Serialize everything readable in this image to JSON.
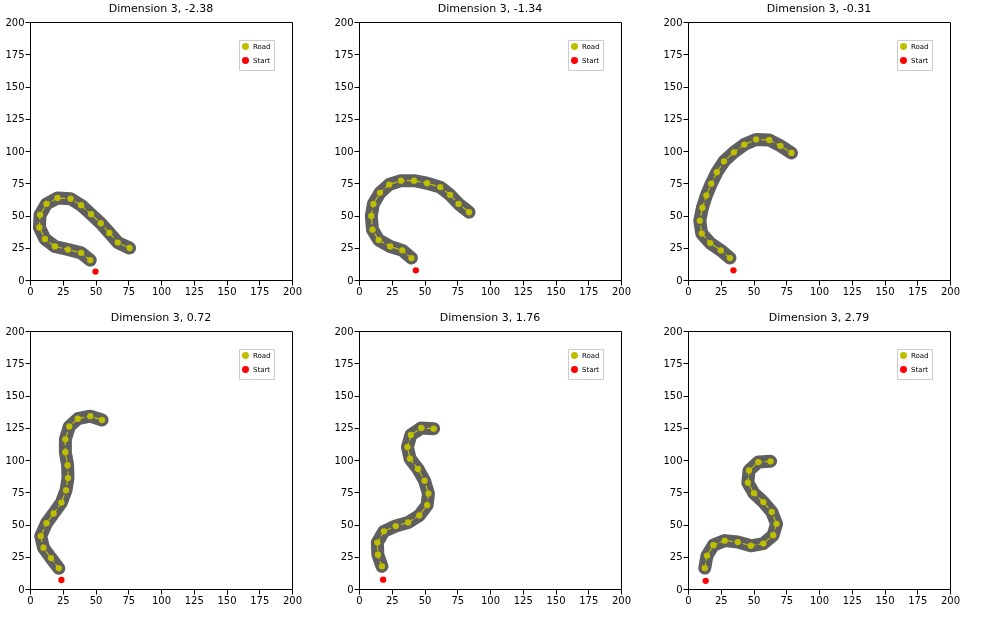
{
  "chart_data": [
    {
      "type": "line",
      "title": "Dimension 3, -2.38",
      "xlim": [
        0,
        200
      ],
      "ylim": [
        0,
        200
      ],
      "xticks": [
        0,
        25,
        50,
        75,
        100,
        125,
        150,
        175,
        200
      ],
      "yticks": [
        0,
        25,
        50,
        75,
        100,
        125,
        150,
        175,
        200
      ],
      "grid": false,
      "legend": "top right",
      "series": [
        {
          "name": "Road",
          "color": "#bfbf00",
          "marker": "circle",
          "line_style": "dashed",
          "x": [
            46,
            39,
            29,
            19,
            11.4,
            7.2,
            7.7,
            12.6,
            21,
            31,
            39,
            46.6,
            54,
            60.6,
            67,
            76
          ],
          "values": [
            15.4,
            21,
            23.6,
            26,
            31.8,
            40.7,
            50.5,
            59,
            63.6,
            63,
            58,
            51,
            44,
            36.5,
            29,
            24.8
          ]
        },
        {
          "name": "Start",
          "type": "scatter",
          "color": "#ff0000",
          "marker": "circle",
          "x": [
            50
          ],
          "values": [
            6.5
          ]
        },
        {
          "color": "#5f5f5f",
          "marker": "none",
          "line_style": "solid",
          "x": [
            46,
            39,
            29,
            19,
            11.4,
            7.2,
            7.7,
            12.6,
            21,
            31,
            39,
            46.6,
            54,
            60.6,
            67,
            76
          ],
          "values": [
            15.4,
            21,
            23.6,
            26,
            31.8,
            40.7,
            50.5,
            59,
            63.6,
            63,
            58,
            51,
            44,
            36.5,
            29,
            24.8
          ]
        }
      ]
    },
    {
      "type": "line",
      "title": "Dimension 3, -1.34",
      "xlim": [
        0,
        200
      ],
      "ylim": [
        0,
        200
      ],
      "xticks": [
        0,
        25,
        50,
        75,
        100,
        125,
        150,
        175,
        200
      ],
      "yticks": [
        0,
        25,
        50,
        75,
        100,
        125,
        150,
        175,
        200
      ],
      "grid": false,
      "legend": "top right",
      "series": [
        {
          "name": "Road",
          "color": "#bfbf00",
          "marker": "circle",
          "line_style": "dashed",
          "x": [
            40,
            33,
            23.8,
            15,
            10.3,
            9.4,
            11,
            16,
            23,
            32,
            42,
            52,
            62,
            69.5,
            76,
            84
          ],
          "values": [
            17,
            23,
            26,
            31,
            39,
            49.6,
            59,
            67.6,
            74,
            77,
            77,
            75,
            72,
            66,
            59,
            52.6
          ]
        },
        {
          "name": "Start",
          "type": "scatter",
          "color": "#ff0000",
          "marker": "circle",
          "x": [
            43.4
          ],
          "values": [
            7.5
          ]
        },
        {
          "color": "#5f5f5f",
          "marker": "none",
          "line_style": "solid",
          "x": [
            40,
            33,
            23.8,
            15,
            10.3,
            9.4,
            11,
            16,
            23,
            32,
            42,
            52,
            62,
            69.5,
            76,
            84
          ],
          "values": [
            17,
            23,
            26,
            31,
            39,
            49.6,
            59,
            67.6,
            74,
            77,
            77,
            75,
            72,
            66,
            59,
            52.6
          ]
        }
      ]
    },
    {
      "type": "line",
      "title": "Dimension 3, -0.31",
      "xlim": [
        0,
        200
      ],
      "ylim": [
        0,
        200
      ],
      "xticks": [
        0,
        25,
        50,
        75,
        100,
        125,
        150,
        175,
        200
      ],
      "yticks": [
        0,
        25,
        50,
        75,
        100,
        125,
        150,
        175,
        200
      ],
      "grid": false,
      "legend": "top right",
      "series": [
        {
          "name": "Road",
          "color": "#bfbf00",
          "marker": "circle",
          "line_style": "dashed",
          "x": [
            32,
            25,
            17,
            10.5,
            9,
            11,
            14,
            17.7,
            22,
            27.5,
            35,
            43,
            52,
            62,
            70.5,
            79
          ],
          "values": [
            17,
            23,
            28.6,
            36,
            46,
            56,
            65.5,
            74.6,
            83.5,
            92,
            99,
            105,
            109,
            108.5,
            104,
            98.5
          ]
        },
        {
          "name": "Start",
          "type": "scatter",
          "color": "#ff0000",
          "marker": "circle",
          "x": [
            34.7
          ],
          "values": [
            7.5
          ]
        },
        {
          "color": "#5f5f5f",
          "marker": "none",
          "line_style": "solid",
          "x": [
            32,
            25,
            17,
            10.5,
            9,
            11,
            14,
            17.7,
            22,
            27.5,
            35,
            43,
            52,
            62,
            70.5,
            79
          ],
          "values": [
            17,
            23,
            28.6,
            36,
            46,
            56,
            65.5,
            74.6,
            83.5,
            92,
            99,
            105,
            109,
            108.5,
            104,
            98.5
          ]
        }
      ]
    },
    {
      "type": "line",
      "title": "Dimension 3, 0.72",
      "xlim": [
        0,
        200
      ],
      "ylim": [
        0,
        200
      ],
      "xticks": [
        0,
        25,
        50,
        75,
        100,
        125,
        150,
        175,
        200
      ],
      "yticks": [
        0,
        25,
        50,
        75,
        100,
        125,
        150,
        175,
        200
      ],
      "grid": false,
      "legend": "top right",
      "series": [
        {
          "name": "Road",
          "color": "#bfbf00",
          "marker": "circle",
          "line_style": "dashed",
          "x": [
            22,
            16,
            10.3,
            8.2,
            12.6,
            18,
            24,
            27.5,
            29,
            28.7,
            27,
            27,
            30,
            36.5,
            46,
            55
          ],
          "values": [
            16,
            24,
            32,
            41,
            51,
            58.5,
            67,
            76.5,
            86,
            96,
            106,
            116,
            126,
            132,
            134,
            131
          ]
        },
        {
          "name": "Start",
          "type": "scatter",
          "color": "#ff0000",
          "marker": "circle",
          "x": [
            24
          ],
          "values": [
            7
          ]
        },
        {
          "color": "#5f5f5f",
          "marker": "none",
          "line_style": "solid",
          "x": [
            22,
            16,
            10.3,
            8.2,
            12.6,
            18,
            24,
            27.5,
            29,
            28.7,
            27,
            27,
            30,
            36.5,
            46,
            55
          ],
          "values": [
            16,
            24,
            32,
            41,
            51,
            58.5,
            67,
            76.5,
            86,
            96,
            106,
            116,
            126,
            132,
            134,
            131
          ]
        }
      ]
    },
    {
      "type": "line",
      "title": "Dimension 3, 1.76",
      "xlim": [
        0,
        200
      ],
      "ylim": [
        0,
        200
      ],
      "xticks": [
        0,
        25,
        50,
        75,
        100,
        125,
        150,
        175,
        200
      ],
      "yticks": [
        0,
        25,
        50,
        75,
        100,
        125,
        150,
        175,
        200
      ],
      "grid": false,
      "legend": "top right",
      "series": [
        {
          "name": "Road",
          "color": "#bfbf00",
          "marker": "circle",
          "line_style": "dashed",
          "x": [
            17.5,
            14.4,
            14,
            19,
            28,
            37.5,
            46,
            52,
            53,
            50,
            45,
            39,
            37,
            39.6,
            47.5,
            57
          ],
          "values": [
            17.6,
            26.6,
            36,
            44.7,
            48.8,
            51.6,
            57,
            65,
            74,
            84,
            93,
            101,
            110,
            119.4,
            124.8,
            124.3
          ]
        },
        {
          "name": "Start",
          "type": "scatter",
          "color": "#ff0000",
          "marker": "circle",
          "x": [
            18.4
          ],
          "values": [
            7.2
          ]
        },
        {
          "color": "#5f5f5f",
          "marker": "none",
          "line_style": "solid",
          "x": [
            17.5,
            14.4,
            14,
            19,
            28,
            37.5,
            46,
            52,
            53,
            50,
            45,
            39,
            37,
            39.6,
            47.5,
            57
          ],
          "values": [
            17.6,
            26.6,
            36,
            44.7,
            48.8,
            51.6,
            57,
            65,
            74,
            84,
            93,
            101,
            110,
            119.4,
            124.8,
            124.3
          ]
        }
      ]
    },
    {
      "type": "line",
      "title": "Dimension 3, 2.79",
      "xlim": [
        0,
        200
      ],
      "ylim": [
        0,
        200
      ],
      "xticks": [
        0,
        25,
        50,
        75,
        100,
        125,
        150,
        175,
        200
      ],
      "yticks": [
        0,
        25,
        50,
        75,
        100,
        125,
        150,
        175,
        200
      ],
      "grid": false,
      "legend": "top right",
      "series": [
        {
          "name": "Road",
          "color": "#bfbf00",
          "marker": "circle",
          "line_style": "dashed",
          "x": [
            12.8,
            14.5,
            19.4,
            28,
            38,
            48,
            57.5,
            65,
            67.6,
            64,
            57.5,
            50.3,
            45.7,
            46.6,
            53.6,
            63
          ],
          "values": [
            16.2,
            25.9,
            34,
            37.5,
            36.4,
            33.5,
            35.2,
            41.7,
            50.5,
            59.7,
            67.4,
            74.3,
            82.4,
            91.9,
            98.4,
            99
          ]
        },
        {
          "name": "Start",
          "type": "scatter",
          "color": "#ff0000",
          "marker": "circle",
          "x": [
            13.5
          ],
          "values": [
            6.3
          ]
        },
        {
          "color": "#5f5f5f",
          "marker": "none",
          "line_style": "solid",
          "x": [
            12.8,
            14.5,
            19.4,
            28,
            38,
            48,
            57.5,
            65,
            67.6,
            64,
            57.5,
            50.3,
            45.7,
            46.6,
            53.6,
            63
          ],
          "values": [
            16.2,
            25.9,
            34,
            37.5,
            36.4,
            33.5,
            35.2,
            41.7,
            50.5,
            59.7,
            67.4,
            74.3,
            82.4,
            91.9,
            98.4,
            99
          ]
        }
      ]
    }
  ]
}
